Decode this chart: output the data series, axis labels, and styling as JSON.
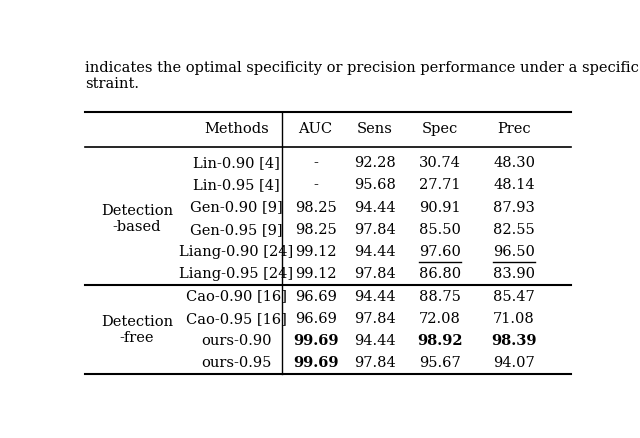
{
  "header_text": "indicates the optimal specificity or precision performance under a specific con-\nstraint.",
  "col_headers": [
    "Methods",
    "AUC",
    "Sens",
    "Spec",
    "Prec"
  ],
  "row_groups": [
    {
      "group_label": "Detection\n-based",
      "rows": [
        {
          "method": "Lin-0.90 [4]",
          "AUC": "-",
          "Sens": "92.28",
          "Spec": "30.74",
          "Prec": "48.30",
          "bold_cols": [],
          "underline_cols": []
        },
        {
          "method": "Lin-0.95 [4]",
          "AUC": "-",
          "Sens": "95.68",
          "Spec": "27.71",
          "Prec": "48.14",
          "bold_cols": [],
          "underline_cols": []
        },
        {
          "method": "Gen-0.90 [9]",
          "AUC": "98.25",
          "Sens": "94.44",
          "Spec": "90.91",
          "Prec": "87.93",
          "bold_cols": [],
          "underline_cols": []
        },
        {
          "method": "Gen-0.95 [9]",
          "AUC": "98.25",
          "Sens": "97.84",
          "Spec": "85.50",
          "Prec": "82.55",
          "bold_cols": [],
          "underline_cols": []
        },
        {
          "method": "Liang-0.90 [24]",
          "AUC": "99.12",
          "Sens": "94.44",
          "Spec": "97.60",
          "Prec": "96.50",
          "bold_cols": [],
          "underline_cols": [
            "Spec",
            "Prec"
          ]
        },
        {
          "method": "Liang-0.95 [24]",
          "AUC": "99.12",
          "Sens": "97.84",
          "Spec": "86.80",
          "Prec": "83.90",
          "bold_cols": [],
          "underline_cols": []
        }
      ]
    },
    {
      "group_label": "Detection\n-free",
      "rows": [
        {
          "method": "Cao-0.90 [16]",
          "AUC": "96.69",
          "Sens": "94.44",
          "Spec": "88.75",
          "Prec": "85.47",
          "bold_cols": [],
          "underline_cols": []
        },
        {
          "method": "Cao-0.95 [16]",
          "AUC": "96.69",
          "Sens": "97.84",
          "Spec": "72.08",
          "Prec": "71.08",
          "bold_cols": [],
          "underline_cols": []
        },
        {
          "method": "ours-0.90",
          "AUC": "99.69",
          "Sens": "94.44",
          "Spec": "98.92",
          "Prec": "98.39",
          "bold_cols": [
            "AUC",
            "Spec",
            "Prec"
          ],
          "underline_cols": []
        },
        {
          "method": "ours-0.95",
          "AUC": "99.69",
          "Sens": "97.84",
          "Spec": "95.67",
          "Prec": "94.07",
          "bold_cols": [
            "AUC"
          ],
          "underline_cols": []
        }
      ]
    }
  ],
  "bg_color": "#ffffff",
  "text_color": "#000000",
  "font_size": 10.5
}
